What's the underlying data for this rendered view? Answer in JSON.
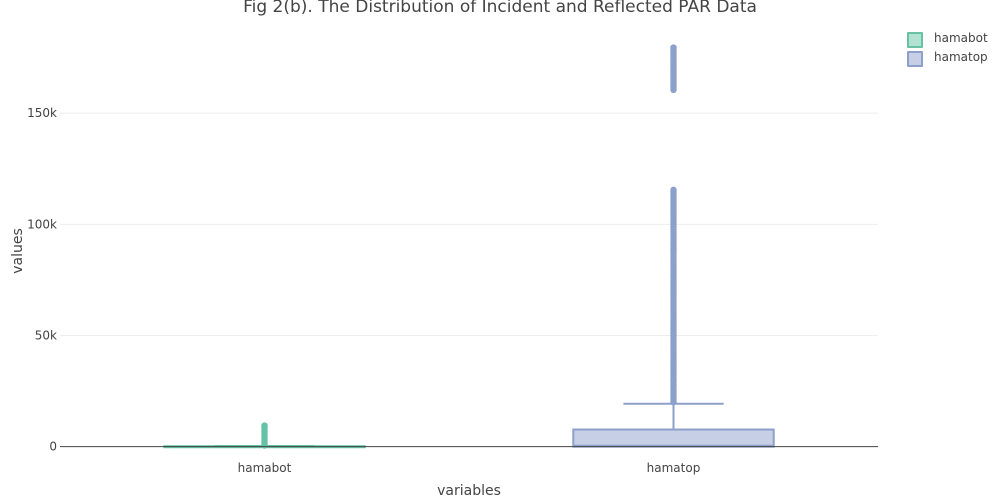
{
  "chart_data": {
    "type": "box",
    "title": "Fig 2(b). The Distribution of Incident and Reflected PAR Data",
    "xlabel": "variables",
    "ylabel": "values",
    "categories": [
      "hamabot",
      "hamatop"
    ],
    "ylim": [
      -6000,
      182000
    ],
    "yticks": [
      0,
      50000,
      100000,
      150000
    ],
    "ytick_labels": [
      "0",
      "50k",
      "100k",
      "150k"
    ],
    "grid": true,
    "legend_position": "top-right",
    "series": [
      {
        "name": "hamabot",
        "color": "#66c2a5",
        "fill": "#b3e1d2",
        "min": 0,
        "q1": 0,
        "median": 0,
        "q3": 200,
        "upper_fence": 300,
        "outlier_max": 9500,
        "outliers_sample": [
          500,
          1200,
          2000,
          2800,
          3600,
          4400,
          5200,
          6000,
          6800,
          7600,
          8400,
          9000,
          9500
        ]
      },
      {
        "name": "hamatop",
        "color": "#8da0cb",
        "fill": "#c6cfe5",
        "min": 0,
        "q1": 0,
        "median": 400,
        "q3": 7700,
        "upper_fence": 19300,
        "outlier_max": 179500,
        "outliers_sample": [
          20000,
          25000,
          30000,
          40000,
          50000,
          60000,
          70000,
          80000,
          90000,
          100000,
          105000,
          110000,
          113000,
          115500,
          160500,
          163000,
          165500,
          168000,
          170500,
          173000,
          175500,
          178000,
          179500
        ]
      }
    ]
  }
}
